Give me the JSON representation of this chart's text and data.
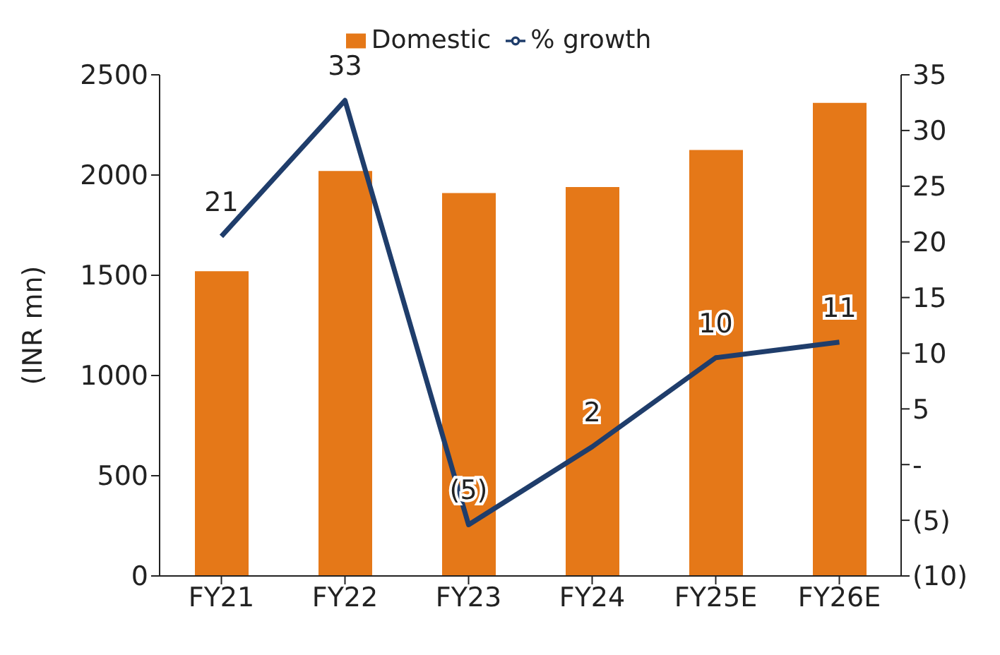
{
  "chart_data": {
    "type": "bar",
    "categories": [
      "FY21",
      "FY22",
      "FY23",
      "FY24",
      "FY25E",
      "FY26E"
    ],
    "ylabel": "(INR mn)",
    "ylim": [
      0,
      2500
    ],
    "yticks": [
      0,
      500,
      1000,
      1500,
      2000,
      2500
    ],
    "y2lim": [
      -10,
      35
    ],
    "y2ticks": [
      {
        "value": -10,
        "label": "(10)"
      },
      {
        "value": -5,
        "label": "(5)"
      },
      {
        "value": 0,
        "label": "-"
      },
      5,
      10,
      15,
      20,
      25,
      30,
      35
    ],
    "legend": "top",
    "series": [
      {
        "name": "Domestic",
        "color": "#e57818",
        "values": [
          1520,
          2020,
          1910,
          1940,
          2125,
          2360
        ]
      },
      {
        "name": "% growth",
        "type": "line",
        "axis": "y2",
        "color": "#1f3d6b",
        "marker": "none",
        "values": [
          20.5,
          32.7,
          -5.4,
          1.6,
          9.6,
          11.0
        ],
        "value_labels": [
          "21",
          "33",
          "(5)",
          "2",
          "10",
          "11"
        ]
      }
    ]
  }
}
